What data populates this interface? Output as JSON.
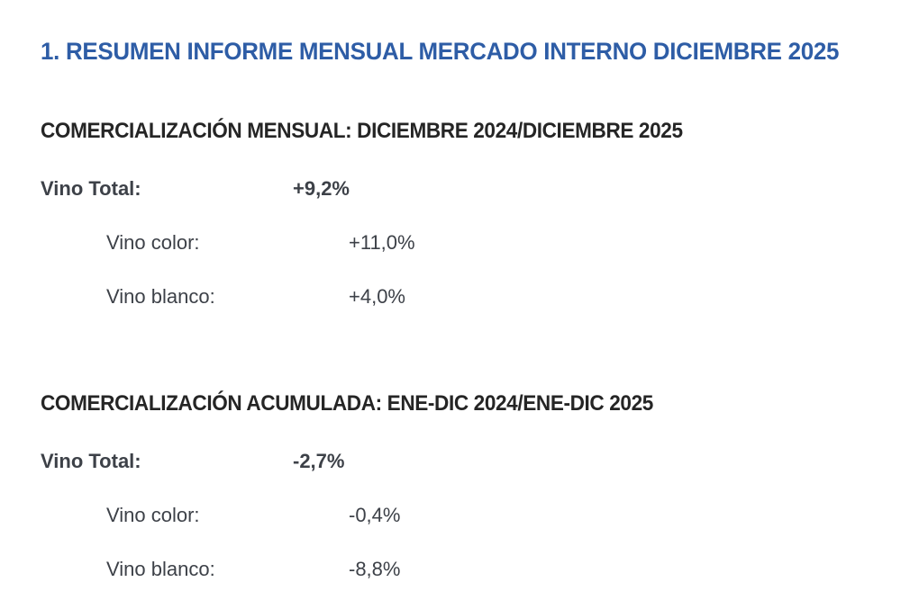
{
  "page": {
    "title": "1. RESUMEN INFORME MENSUAL MERCADO INTERNO DICIEMBRE 2025"
  },
  "sections": [
    {
      "heading": "COMERCIALIZACIÓN MENSUAL: DICIEMBRE 2024/DICIEMBRE 2025",
      "total": {
        "label": "Vino Total:",
        "value": "+9,2%"
      },
      "items": [
        {
          "label": "Vino color:",
          "value": "+11,0%"
        },
        {
          "label": "Vino blanco:",
          "value": "+4,0%"
        }
      ]
    },
    {
      "heading": "COMERCIALIZACIÓN ACUMULADA: ENE-DIC 2024/ENE-DIC 2025",
      "total": {
        "label": "Vino Total:",
        "value": "-2,7%"
      },
      "items": [
        {
          "label": "Vino color:",
          "value": "-0,4%"
        },
        {
          "label": "Vino blanco:",
          "value": "-8,8%"
        }
      ]
    }
  ],
  "colors": {
    "title_blue": "#2E5DA6",
    "heading_dark": "#252525",
    "body_text": "#3D4148"
  }
}
